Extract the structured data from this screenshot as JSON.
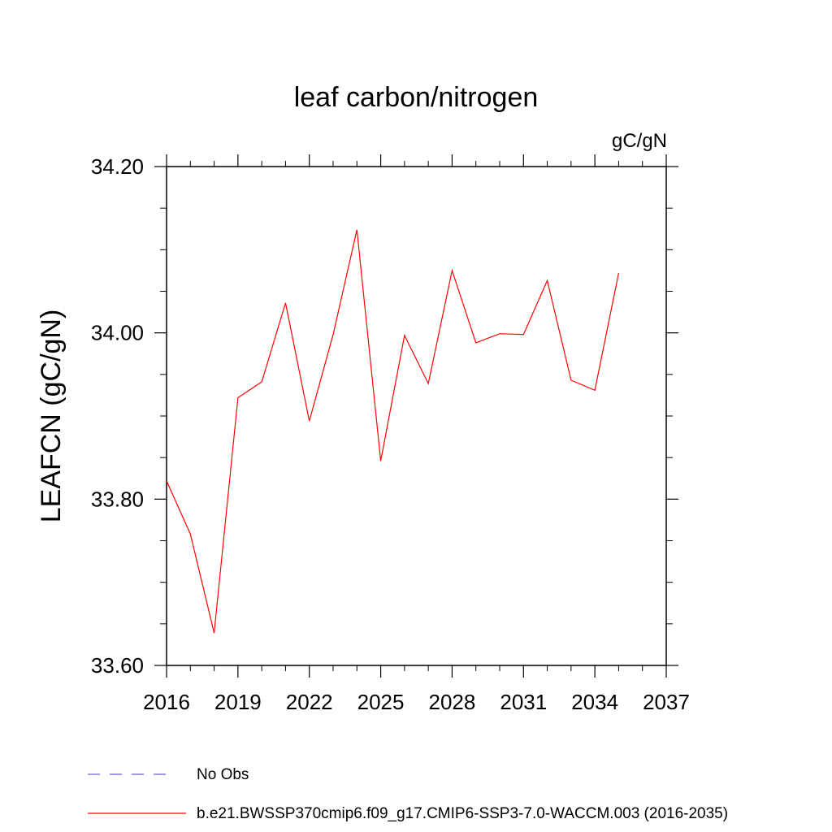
{
  "chart_data": {
    "type": "line",
    "title": "leaf carbon/nitrogen",
    "units_label": "gC/gN",
    "xlabel": "",
    "ylabel": "LEAFCN  (gC/gN)",
    "xlim": [
      2016,
      2037
    ],
    "ylim": [
      33.6,
      34.2
    ],
    "x_ticks": [
      2016,
      2019,
      2022,
      2025,
      2028,
      2031,
      2034,
      2037
    ],
    "x_tick_labels": [
      "2016",
      "2019",
      "2022",
      "2025",
      "2028",
      "2031",
      "2034",
      "2037"
    ],
    "y_ticks": [
      33.6,
      33.8,
      34.0,
      34.2
    ],
    "y_tick_labels": [
      "33.60",
      "33.80",
      "34.00",
      "34.20"
    ],
    "series": [
      {
        "name": "b.e21.BWSSP370cmip6.f09_g17.CMIP6-SSP3-7.0-WACCM.003 (2016-2035)",
        "color": "#ff0000",
        "style": "solid",
        "x": [
          2016,
          2017,
          2018,
          2019,
          2020,
          2021,
          2022,
          2023,
          2024,
          2025,
          2026,
          2027,
          2028,
          2029,
          2030,
          2031,
          2032,
          2033,
          2034,
          2035
        ],
        "values": [
          33.822,
          33.758,
          33.639,
          33.922,
          33.941,
          34.036,
          33.894,
          33.998,
          34.124,
          33.846,
          33.997,
          33.939,
          34.075,
          33.988,
          33.999,
          33.998,
          34.063,
          33.943,
          33.931,
          34.072
        ]
      }
    ],
    "legend": [
      {
        "label": "No Obs",
        "color": "#6a5acd",
        "style": "dashed"
      },
      {
        "label": "b.e21.BWSSP370cmip6.f09_g17.CMIP6-SSP3-7.0-WACCM.003 (2016-2035)",
        "color": "#ff0000",
        "style": "solid"
      }
    ],
    "legend_position": "bottom-left"
  }
}
